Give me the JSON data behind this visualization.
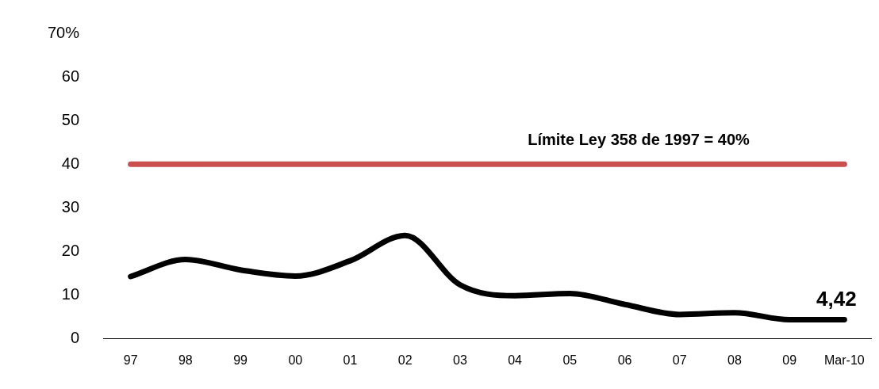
{
  "chart_data": {
    "type": "line",
    "categories": [
      "97",
      "98",
      "99",
      "00",
      "01",
      "02",
      "03",
      "04",
      "05",
      "06",
      "07",
      "08",
      "09",
      "Mar-10"
    ],
    "series": [
      {
        "color": "#000000",
        "values": [
          14.3,
          18.2,
          15.8,
          14.4,
          17.9,
          23.7,
          12.4,
          9.9,
          10.4,
          7.9,
          5.6,
          6.0,
          4.4,
          4.42
        ],
        "value_labels": [
          null,
          null,
          null,
          null,
          null,
          null,
          null,
          null,
          null,
          null,
          null,
          null,
          null,
          "4,42"
        ]
      }
    ],
    "ylim": [
      0,
      70
    ],
    "yticks": [
      0,
      10,
      20,
      30,
      40,
      50,
      60,
      {
        "value": 70,
        "label": "70%"
      }
    ],
    "ref_lines": [
      {
        "axis": "y",
        "value": 40,
        "label": "Límite Ley 358 de 1997 = 40%",
        "color": "#c9504f"
      }
    ],
    "grid": false,
    "legend": false,
    "marker": "none",
    "line_style": "solid"
  }
}
